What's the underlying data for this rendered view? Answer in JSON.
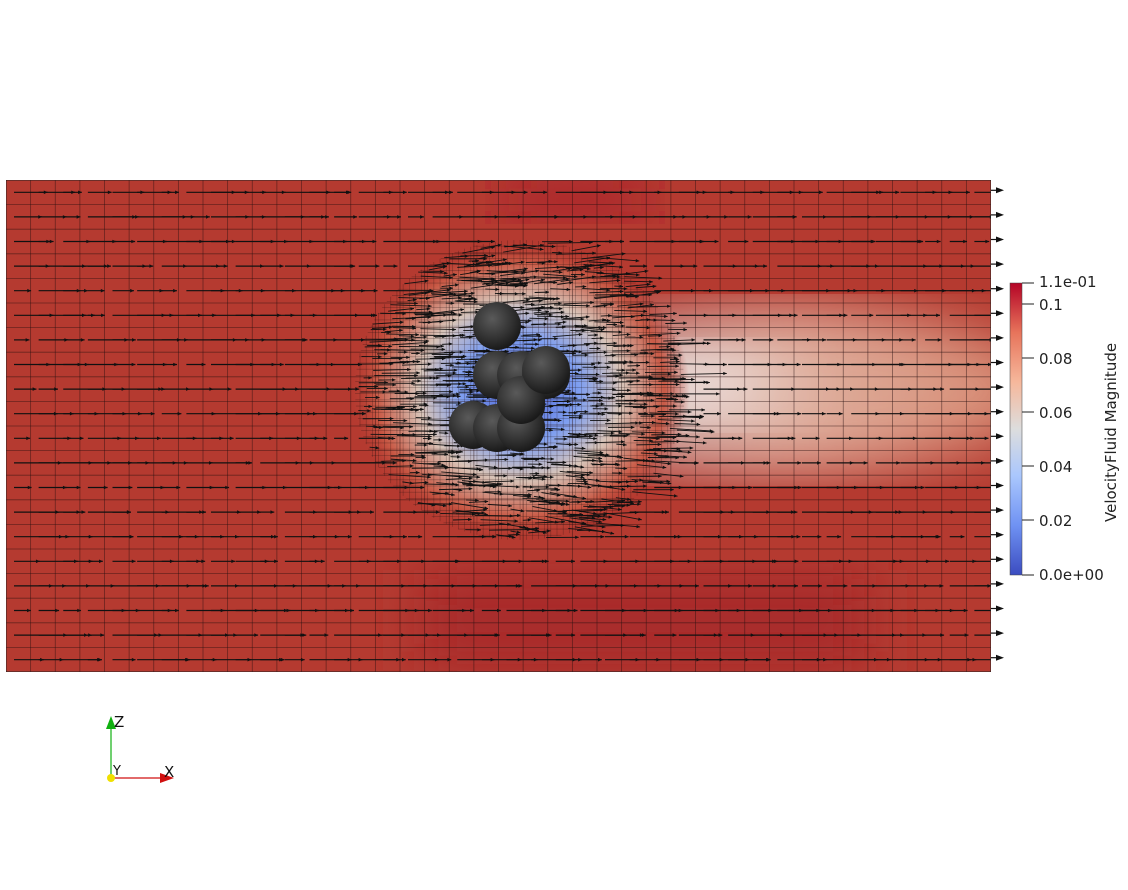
{
  "colorbar": {
    "title": "VelocityFluid Magnitude",
    "range_max_label": "1.1e-01",
    "range_min_label": "0.0e+00",
    "ticks": [
      "0.1",
      "0.08",
      "0.06",
      "0.04",
      "0.02"
    ],
    "colormap": [
      "#3b4cc0",
      "#7b9ff9",
      "#c0d4f5",
      "#dddddd",
      "#f2cbb7",
      "#ee8468",
      "#b40426"
    ]
  },
  "axes_triad": {
    "x": "X",
    "y": "Y",
    "z": "Z",
    "x_color": "#d01010",
    "y_color": "#f0e000",
    "z_color": "#10b010"
  },
  "scene": {
    "field_background": "#b53a30",
    "glyph_color": "#111111",
    "particle_color": "#333333",
    "particle_count": 10
  }
}
